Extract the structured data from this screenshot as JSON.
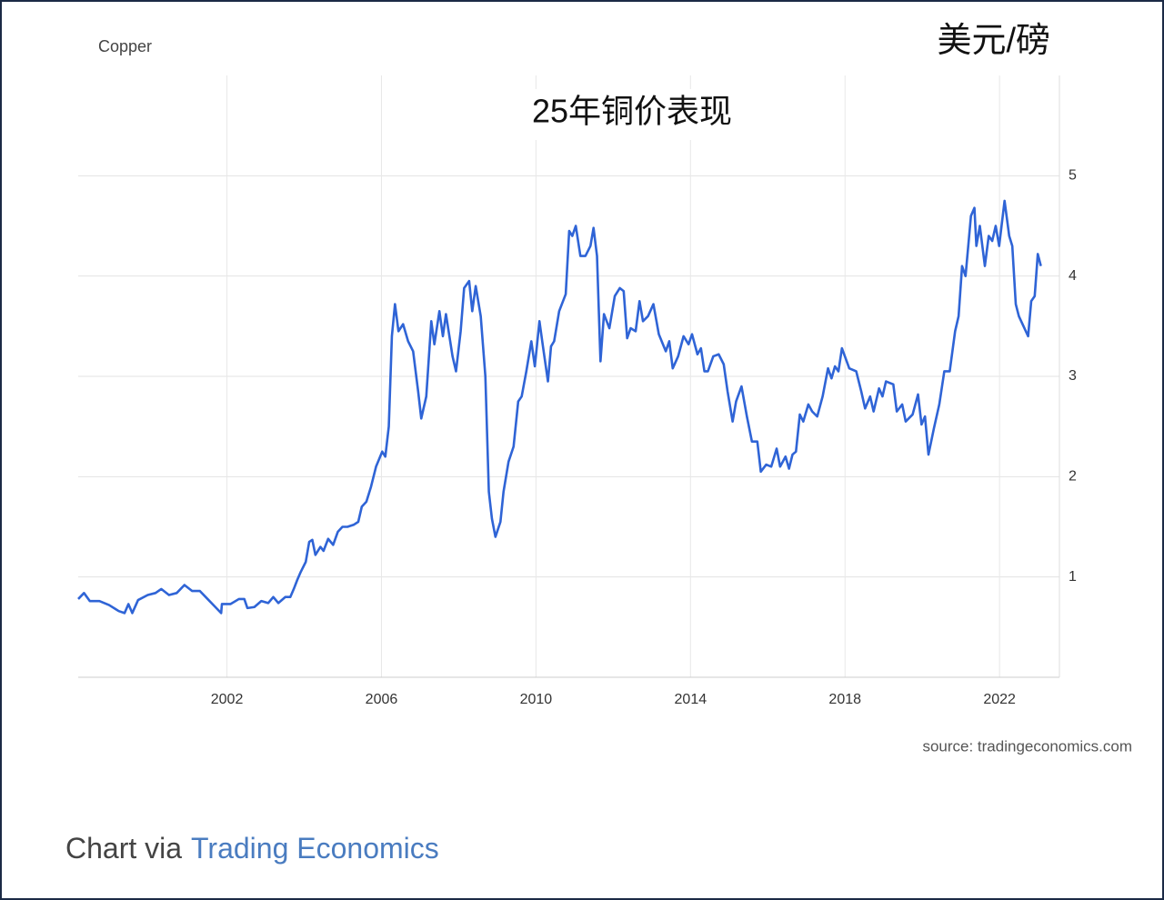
{
  "chart_data": {
    "type": "line",
    "title": "25年铜价表现",
    "unit_label": "美元/磅",
    "source": "source: tradingeconomics.com",
    "x": [
      1998.15,
      1998.3,
      1998.45,
      1998.7,
      1998.95,
      1999.2,
      1999.35,
      1999.45,
      1999.55,
      1999.7,
      1999.95,
      2000.15,
      2000.3,
      2000.5,
      2000.7,
      2000.9,
      2001.1,
      2001.3,
      2001.5,
      2001.7,
      2001.85,
      2001.87,
      2002.09,
      2002.31,
      2002.45,
      2002.53,
      2002.71,
      2002.89,
      2003.07,
      2003.2,
      2003.33,
      2003.51,
      2003.64,
      2003.73,
      2003.82,
      2003.91,
      2004.04,
      2004.13,
      2004.21,
      2004.29,
      2004.42,
      2004.5,
      2004.62,
      2004.75,
      2004.87,
      2004.99,
      2005.12,
      2005.28,
      2005.4,
      2005.49,
      2005.61,
      2005.73,
      2005.86,
      2006.02,
      2006.1,
      2006.19,
      2006.27,
      2006.35,
      2006.44,
      2006.56,
      2006.69,
      2006.82,
      2006.95,
      2007.03,
      2007.16,
      2007.29,
      2007.37,
      2007.5,
      2007.59,
      2007.67,
      2007.84,
      2007.93,
      2008.05,
      2008.14,
      2008.27,
      2008.35,
      2008.44,
      2008.57,
      2008.69,
      2008.78,
      2008.86,
      2008.95,
      2009.08,
      2009.16,
      2009.29,
      2009.42,
      2009.54,
      2009.63,
      2009.75,
      2009.88,
      2009.97,
      2010.09,
      2010.18,
      2010.31,
      2010.39,
      2010.47,
      2010.6,
      2010.77,
      2010.86,
      2010.94,
      2011.03,
      2011.15,
      2011.28,
      2011.41,
      2011.49,
      2011.58,
      2011.67,
      2011.76,
      2011.9,
      2012.04,
      2012.17,
      2012.27,
      2012.36,
      2012.45,
      2012.58,
      2012.68,
      2012.77,
      2012.9,
      2013.04,
      2013.18,
      2013.36,
      2013.45,
      2013.54,
      2013.68,
      2013.82,
      2013.95,
      2014.04,
      2014.18,
      2014.27,
      2014.36,
      2014.45,
      2014.59,
      2014.73,
      2014.86,
      2014.96,
      2015.09,
      2015.18,
      2015.32,
      2015.46,
      2015.59,
      2015.73,
      2015.82,
      2015.96,
      2016.09,
      2016.23,
      2016.32,
      2016.46,
      2016.55,
      2016.64,
      2016.73,
      2016.83,
      2016.92,
      2017.05,
      2017.15,
      2017.28,
      2017.42,
      2017.56,
      2017.65,
      2017.74,
      2017.83,
      2017.92,
      2018.11,
      2018.29,
      2018.42,
      2018.52,
      2018.65,
      2018.74,
      2018.88,
      2018.97,
      2019.06,
      2019.25,
      2019.34,
      2019.48,
      2019.57,
      2019.75,
      2019.89,
      2019.98,
      2020.07,
      2020.16,
      2020.3,
      2020.44,
      2020.57,
      2020.71,
      2020.85,
      2020.94,
      2021.03,
      2021.12,
      2021.26,
      2021.35,
      2021.4,
      2021.49,
      2021.62,
      2021.72,
      2021.81,
      2021.9,
      2021.99,
      2022.13,
      2022.25,
      2022.33,
      2022.42,
      2022.5,
      2022.62,
      2022.74,
      2022.82,
      2022.91,
      2022.99,
      2023.07
    ],
    "series": [
      {
        "name": "Copper",
        "color": "#2f64d6",
        "values": [
          0.78,
          0.84,
          0.76,
          0.76,
          0.72,
          0.66,
          0.64,
          0.73,
          0.64,
          0.77,
          0.82,
          0.84,
          0.88,
          0.82,
          0.84,
          0.92,
          0.86,
          0.86,
          0.78,
          0.7,
          0.64,
          0.73,
          0.73,
          0.78,
          0.78,
          0.69,
          0.7,
          0.76,
          0.74,
          0.8,
          0.74,
          0.8,
          0.8,
          0.88,
          0.97,
          1.05,
          1.15,
          1.35,
          1.37,
          1.22,
          1.3,
          1.26,
          1.38,
          1.32,
          1.45,
          1.5,
          1.5,
          1.52,
          1.55,
          1.7,
          1.75,
          1.9,
          2.1,
          2.25,
          2.2,
          2.5,
          3.4,
          3.72,
          3.45,
          3.52,
          3.35,
          3.25,
          2.85,
          2.58,
          2.8,
          3.55,
          3.32,
          3.65,
          3.4,
          3.62,
          3.2,
          3.05,
          3.45,
          3.88,
          3.95,
          3.65,
          3.9,
          3.6,
          3.0,
          1.85,
          1.58,
          1.4,
          1.55,
          1.85,
          2.15,
          2.3,
          2.75,
          2.8,
          3.05,
          3.35,
          3.1,
          3.55,
          3.3,
          2.95,
          3.3,
          3.35,
          3.65,
          3.82,
          4.45,
          4.4,
          4.5,
          4.2,
          4.2,
          4.3,
          4.48,
          4.2,
          3.15,
          3.62,
          3.48,
          3.8,
          3.88,
          3.85,
          3.38,
          3.48,
          3.45,
          3.75,
          3.55,
          3.6,
          3.72,
          3.42,
          3.25,
          3.35,
          3.08,
          3.2,
          3.4,
          3.32,
          3.42,
          3.22,
          3.28,
          3.05,
          3.05,
          3.2,
          3.22,
          3.12,
          2.85,
          2.55,
          2.75,
          2.9,
          2.6,
          2.35,
          2.35,
          2.05,
          2.12,
          2.1,
          2.28,
          2.1,
          2.2,
          2.08,
          2.22,
          2.25,
          2.62,
          2.55,
          2.72,
          2.65,
          2.6,
          2.8,
          3.08,
          2.98,
          3.1,
          3.05,
          3.28,
          3.08,
          3.05,
          2.85,
          2.68,
          2.8,
          2.65,
          2.88,
          2.8,
          2.95,
          2.92,
          2.65,
          2.72,
          2.55,
          2.62,
          2.82,
          2.52,
          2.6,
          2.22,
          2.48,
          2.72,
          3.05,
          3.05,
          3.45,
          3.6,
          4.1,
          4.0,
          4.6,
          4.68,
          4.3,
          4.5,
          4.1,
          4.4,
          4.35,
          4.5,
          4.3,
          4.75,
          4.4,
          4.3,
          3.72,
          3.6,
          3.5,
          3.4,
          3.75,
          3.8,
          4.22,
          4.1
        ]
      }
    ],
    "xlim": [
      1998.15,
      2023.55
    ],
    "xticks": [
      2002,
      2006,
      2010,
      2014,
      2018,
      2022
    ],
    "ylim": [
      0,
      6
    ],
    "yticks": [
      1,
      2,
      3,
      4,
      5
    ],
    "grid": true
  },
  "credit": {
    "prefix": "Chart via",
    "link": "Trading Economics"
  }
}
